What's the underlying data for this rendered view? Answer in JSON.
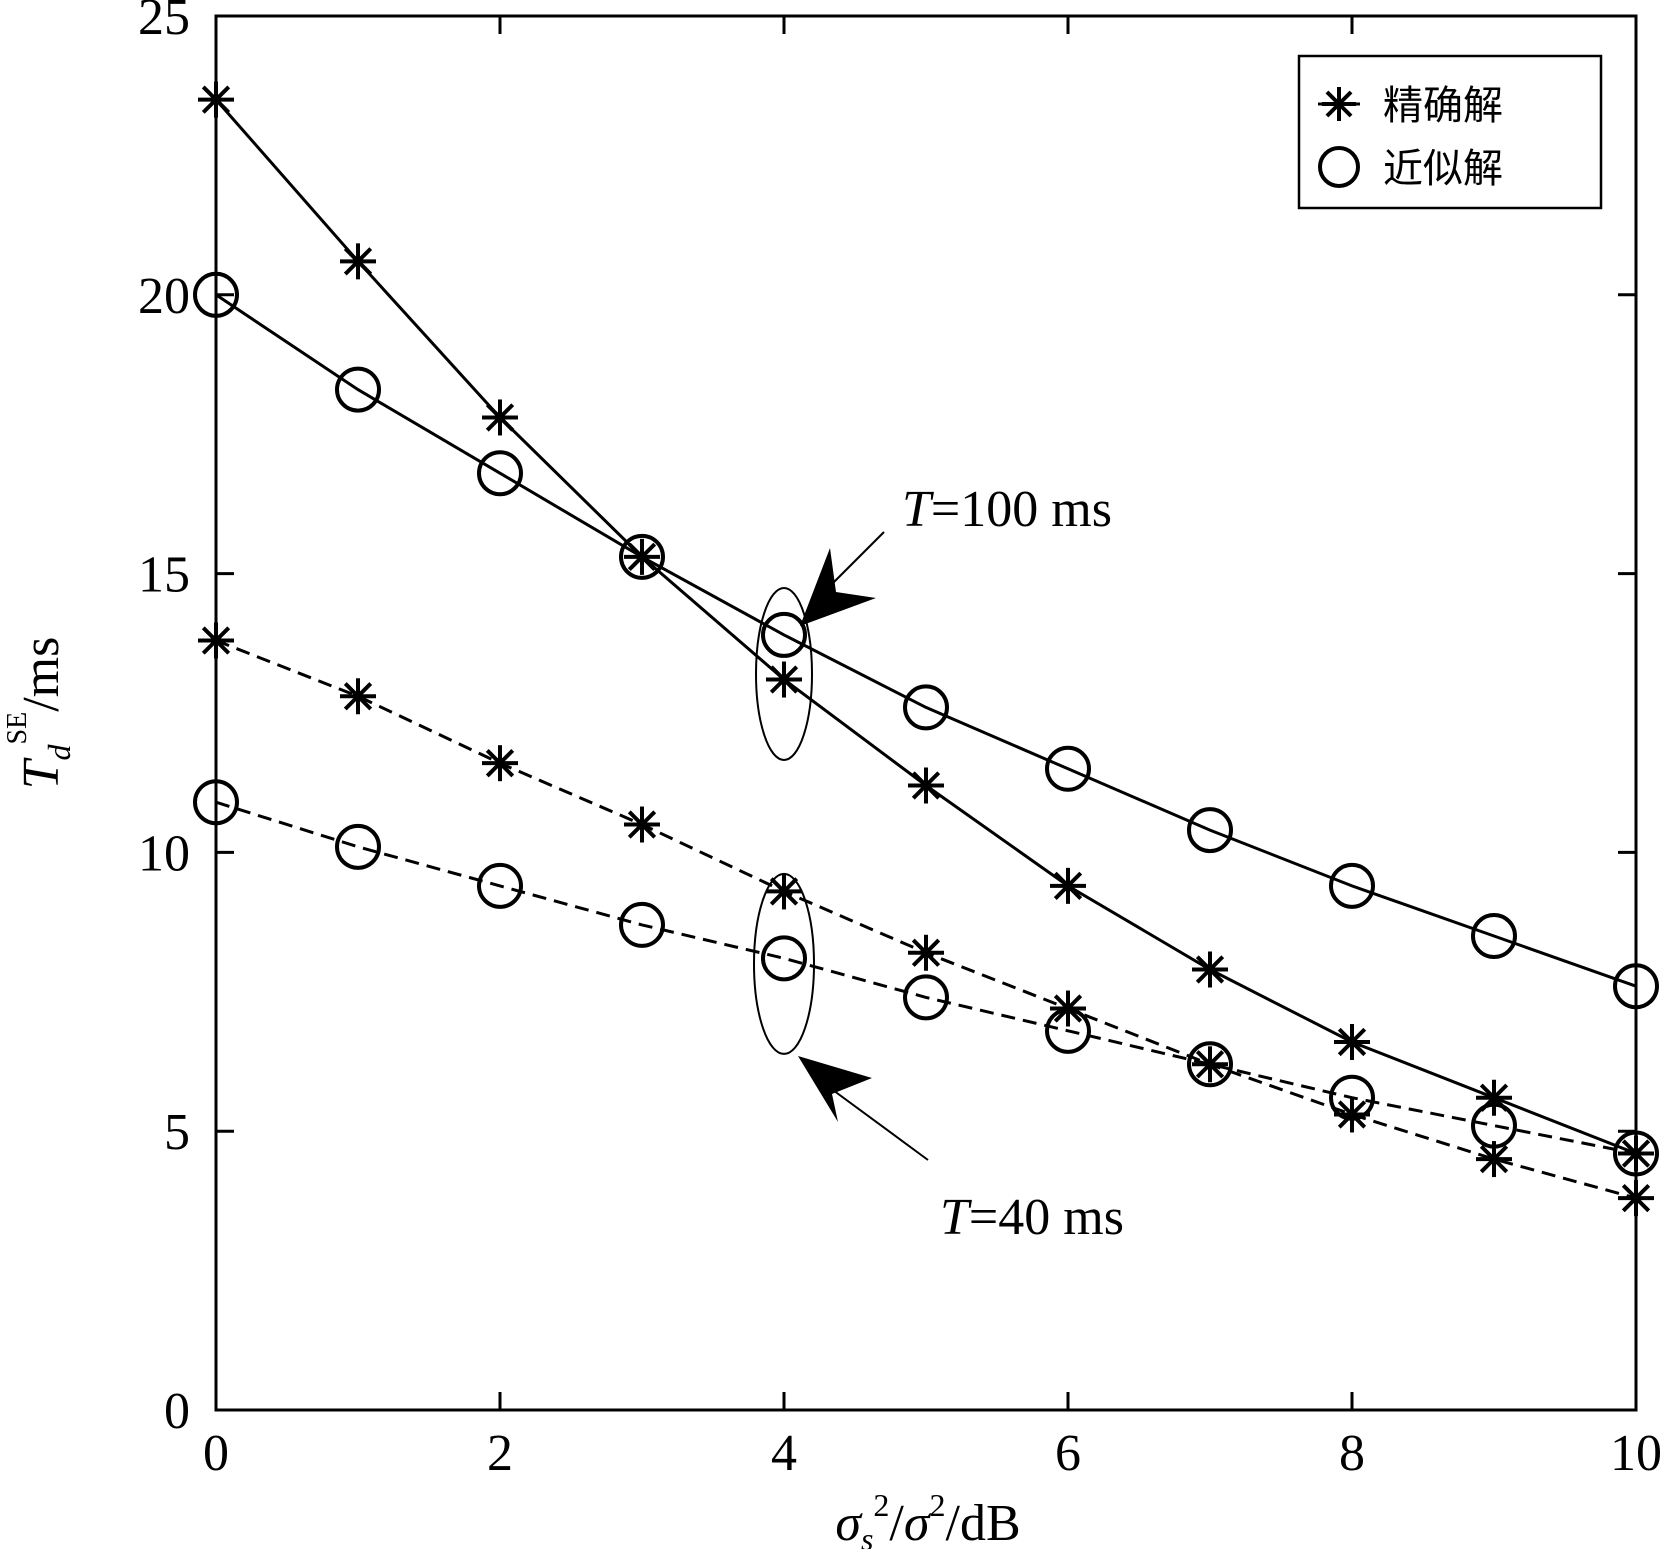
{
  "chart_data": {
    "type": "line",
    "title": "",
    "xlabel": {
      "base1": "σ",
      "sub1": "s",
      "sup1": "2",
      "sep": "/",
      "base2": "σ",
      "sup2": "2",
      "unit": "/dB"
    },
    "ylabel": {
      "base": "T",
      "sub": "d",
      "sup": "SE",
      "unit": "/ms"
    },
    "xlim": [
      0,
      10
    ],
    "ylim": [
      0,
      25
    ],
    "x_ticks": [
      "0",
      "2",
      "4",
      "6",
      "8",
      "10"
    ],
    "y_ticks": [
      "0",
      "5",
      "10",
      "15",
      "20",
      "25"
    ],
    "grid": false,
    "legend": {
      "position": "top-right",
      "entries": [
        {
          "label": "精确解",
          "marker": "asterisk"
        },
        {
          "label": "近似解",
          "marker": "circle"
        }
      ]
    },
    "x": [
      0,
      1,
      2,
      3,
      4,
      5,
      6,
      7,
      8,
      9,
      10
    ],
    "series": [
      {
        "legend": "精确解",
        "group": "T=100 ms",
        "marker": "asterisk",
        "line": "solid",
        "values": [
          23.5,
          20.6,
          17.8,
          15.3,
          13.1,
          11.2,
          9.4,
          7.9,
          6.6,
          5.6,
          4.6
        ]
      },
      {
        "legend": "近似解",
        "group": "T=100 ms",
        "marker": "circle",
        "line": "solid",
        "values": [
          20.0,
          18.3,
          16.8,
          15.3,
          13.9,
          12.6,
          11.5,
          10.4,
          9.4,
          8.5,
          7.6
        ]
      },
      {
        "legend": "精确解",
        "group": "T=40 ms",
        "marker": "asterisk",
        "line": "dashed",
        "values": [
          13.8,
          12.8,
          11.6,
          10.5,
          9.3,
          8.2,
          7.2,
          6.2,
          5.3,
          4.5,
          3.8
        ]
      },
      {
        "legend": "近似解",
        "group": "T=40 ms",
        "marker": "circle",
        "line": "dashed",
        "values": [
          10.9,
          10.1,
          9.4,
          8.7,
          8.1,
          7.4,
          6.8,
          6.2,
          5.6,
          5.1,
          4.6
        ]
      }
    ],
    "annotations": [
      {
        "italic": "T",
        "text": "=100 ms",
        "ellipse_x": 4,
        "ellipse_y": 13.2
      },
      {
        "italic": "T",
        "text": "=40 ms",
        "ellipse_x": 4,
        "ellipse_y": 8.0
      }
    ]
  }
}
